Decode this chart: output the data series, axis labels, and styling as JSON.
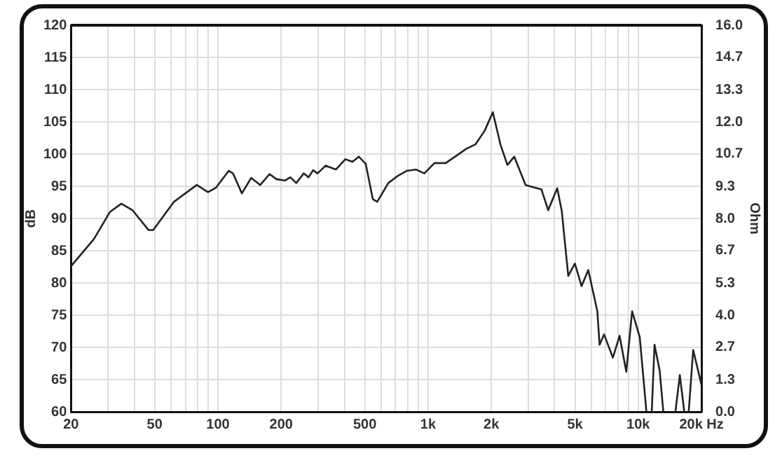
{
  "chart_data": {
    "type": "line",
    "xlabel": null,
    "ylabel": "dB",
    "y2label": "Ohm",
    "log": "x",
    "grid": true,
    "legend": false,
    "marker": "none",
    "line_style": "solid",
    "xlim": [
      20,
      20000
    ],
    "xticks": [
      20,
      {
        "value": 30,
        "label": null
      },
      {
        "value": 40,
        "label": null
      },
      50,
      {
        "value": 60,
        "label": null
      },
      {
        "value": 70,
        "label": null
      },
      {
        "value": 80,
        "label": null
      },
      {
        "value": 90,
        "label": null
      },
      100,
      200,
      {
        "value": 300,
        "label": null
      },
      {
        "value": 400,
        "label": null
      },
      500,
      {
        "value": 600,
        "label": null
      },
      {
        "value": 700,
        "label": null
      },
      {
        "value": 800,
        "label": null
      },
      {
        "value": 900,
        "label": null
      },
      {
        "value": 1000,
        "label": "1k"
      },
      {
        "value": 2000,
        "label": "2k"
      },
      {
        "value": 3000,
        "label": null
      },
      {
        "value": 4000,
        "label": null
      },
      {
        "value": 5000,
        "label": "5k"
      },
      {
        "value": 6000,
        "label": null
      },
      {
        "value": 7000,
        "label": null
      },
      {
        "value": 8000,
        "label": null
      },
      {
        "value": 9000,
        "label": null
      },
      {
        "value": 10000,
        "label": "10k"
      },
      {
        "value": 20000,
        "label": "20k Hz"
      }
    ],
    "ylim": [
      60,
      120
    ],
    "yticks": [
      60,
      65,
      70,
      75,
      80,
      85,
      90,
      95,
      100,
      105,
      110,
      115,
      120
    ],
    "y2lim": [
      0,
      16
    ],
    "y2ticks": [
      {
        "value": 0,
        "label": "0.0"
      },
      {
        "value": 1.333,
        "label": "1.3"
      },
      {
        "value": 2.667,
        "label": "2.7"
      },
      {
        "value": 4,
        "label": "4.0"
      },
      {
        "value": 5.333,
        "label": "5.3"
      },
      {
        "value": 6.667,
        "label": "6.7"
      },
      {
        "value": 8,
        "label": "8.0"
      },
      {
        "value": 9.333,
        "label": "9.3"
      },
      {
        "value": 10.667,
        "label": "10.7"
      },
      {
        "value": 12,
        "label": "12.0"
      },
      {
        "value": 13.333,
        "label": "13.3"
      },
      {
        "value": 14.667,
        "label": "14.7"
      },
      {
        "value": 16,
        "label": "16.0"
      }
    ],
    "series": [
      {
        "color": "#222222",
        "x": [
          20,
          25.7,
          30.6,
          34.7,
          39.2,
          46.8,
          49.2,
          61.8,
          79.3,
          89.7,
          98,
          112.5,
          118,
          130,
          144,
          159,
          176,
          190,
          209,
          221,
          236,
          256,
          270,
          284,
          298,
          325,
          364,
          404,
          437,
          468,
          505,
          546,
          573,
          647,
          716,
          792,
          877,
          960,
          1072,
          1213,
          1372,
          1518,
          1680,
          1858,
          2033,
          2214,
          2386,
          2571,
          2911,
          3296,
          3464,
          3730,
          4118,
          4326,
          4646,
          4998,
          5378,
          5787,
          6391,
          6550,
          6880,
          7578,
          8155,
          8775,
          9354,
          10169,
          10942,
          11260,
          11600,
          11957,
          12650,
          13170,
          14000,
          15032,
          15780,
          16567,
          17000,
          17390,
          18262,
          20000
        ],
        "values": [
          82.6,
          86.8,
          91.0,
          92.3,
          91.3,
          88.2,
          88.2,
          92.6,
          95.2,
          94.1,
          94.8,
          97.4,
          97.0,
          93.9,
          96.3,
          95.2,
          96.9,
          96.1,
          95.9,
          96.4,
          95.5,
          97.0,
          96.4,
          97.5,
          97.0,
          98.2,
          97.6,
          99.2,
          98.8,
          99.6,
          98.5,
          93.0,
          92.6,
          95.5,
          96.6,
          97.4,
          97.6,
          97.0,
          98.6,
          98.6,
          99.8,
          100.8,
          101.5,
          103.6,
          106.5,
          101.4,
          98.3,
          99.6,
          95.2,
          94.7,
          94.5,
          91.3,
          94.7,
          91.2,
          81.1,
          83.0,
          79.5,
          82.0,
          75.6,
          70.4,
          72.0,
          68.4,
          71.8,
          66.2,
          75.6,
          71.6,
          60,
          null,
          60,
          70.4,
          66.4,
          60,
          null,
          60,
          65.7,
          60,
          null,
          60,
          69.6,
          64.2
        ]
      }
    ]
  }
}
